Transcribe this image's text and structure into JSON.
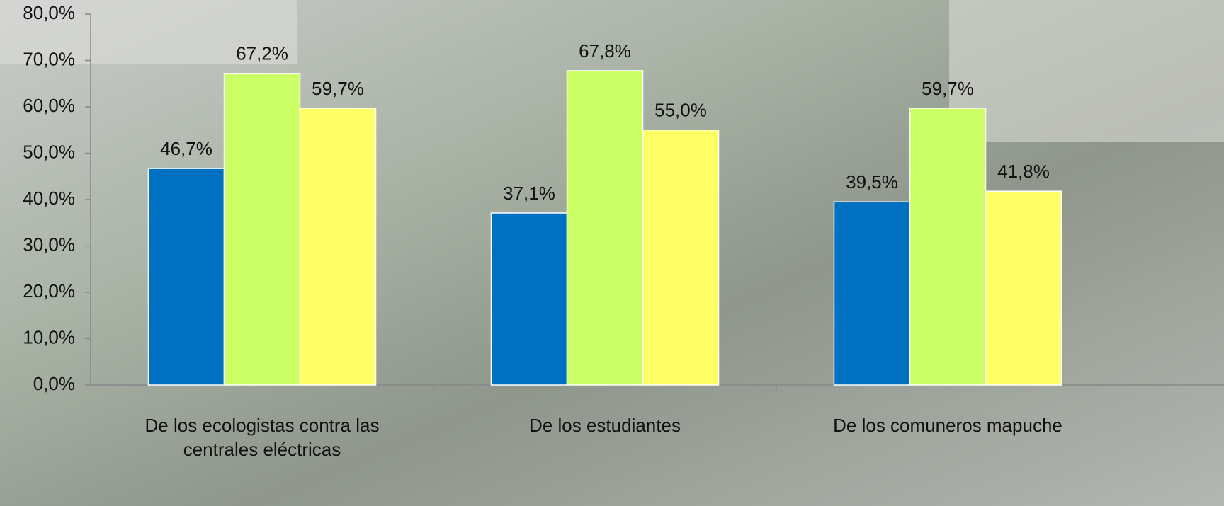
{
  "chart_data": {
    "type": "bar",
    "categories": [
      "De los ecologistas contra las centrales eléctricas",
      "De los estudiantes",
      "De los comuneros mapuche"
    ],
    "series": [
      {
        "color": "#0070c0",
        "values": [
          46.7,
          37.1,
          39.5
        ],
        "value_labels": [
          "46,7%",
          "37,1%",
          "39,5%"
        ]
      },
      {
        "color": "#ccff66",
        "values": [
          67.2,
          67.8,
          59.7
        ],
        "value_labels": [
          "67,2%",
          "67,8%",
          "59,7%"
        ]
      },
      {
        "color": "#ffff66",
        "values": [
          59.7,
          55.0,
          41.8
        ],
        "value_labels": [
          "59,7%",
          "55,0%",
          "41,8%"
        ]
      }
    ],
    "ylim": [
      0,
      80
    ],
    "yticks": [
      {
        "value": 0,
        "label": "0,0%"
      },
      {
        "value": 10,
        "label": "10,0%"
      },
      {
        "value": 20,
        "label": "20,0%"
      },
      {
        "value": 30,
        "label": "30,0%"
      },
      {
        "value": 40,
        "label": "40,0%"
      },
      {
        "value": 50,
        "label": "50,0%"
      },
      {
        "value": 60,
        "label": "60,0%"
      },
      {
        "value": 70,
        "label": "70,0%"
      },
      {
        "value": 80,
        "label": "80,0%"
      }
    ],
    "grid": false
  }
}
